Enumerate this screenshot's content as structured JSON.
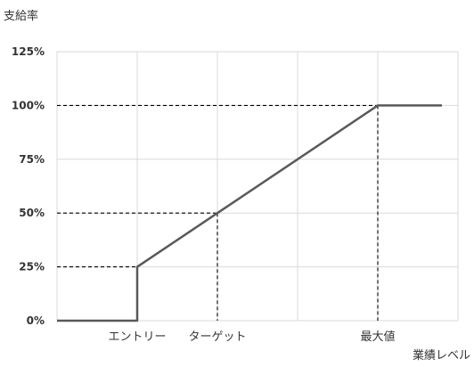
{
  "chart_data": {
    "type": "line",
    "ylabel": "支給率",
    "xlabel": "業績レベル",
    "y_ticks": [
      "0%",
      "25%",
      "50%",
      "75%",
      "100%",
      "125%"
    ],
    "y_tick_values": [
      0,
      25,
      50,
      75,
      100,
      125
    ],
    "ylim": [
      0,
      125
    ],
    "xlim": [
      0,
      5
    ],
    "x_tick_labels": [
      {
        "label": "エントリー",
        "x": 1
      },
      {
        "label": "ターゲット",
        "x": 2
      },
      {
        "label": "最大値",
        "x": 4
      }
    ],
    "grid": true,
    "series": [
      {
        "points": [
          {
            "x": 0,
            "y": 0
          },
          {
            "x": 1,
            "y": 0
          },
          {
            "x": 1,
            "y": 25
          },
          {
            "x": 2,
            "y": 50
          },
          {
            "x": 4,
            "y": 100
          },
          {
            "x": 4.8,
            "y": 100
          }
        ],
        "color": "#595959"
      }
    ],
    "reference_points": [
      {
        "x": 1,
        "y": 25
      },
      {
        "x": 2,
        "y": 50
      },
      {
        "x": 4,
        "y": 100
      }
    ]
  }
}
